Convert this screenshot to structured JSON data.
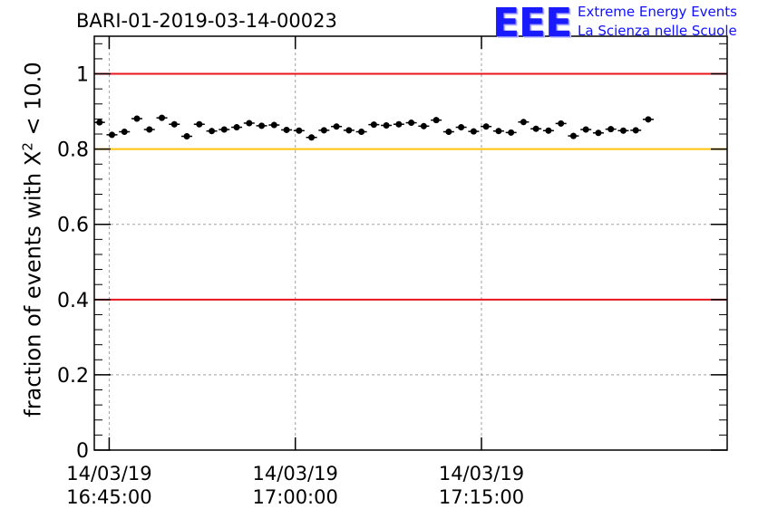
{
  "chart_data": {
    "type": "scatter",
    "title": "BARI-01-2019-03-14-00023",
    "ylabel": "fraction of events with",
    "ylabel_symbol": "X",
    "ylabel_exp": "2",
    "ylabel_suffix": " < 10.0",
    "ylim": [
      0,
      1.1
    ],
    "y_ticks": [
      {
        "value": 0,
        "label": "0"
      },
      {
        "value": 0.2,
        "label": "0.2"
      },
      {
        "value": 0.4,
        "label": "0.4"
      },
      {
        "value": 0.6,
        "label": "0.6"
      },
      {
        "value": 0.8,
        "label": "0.8"
      },
      {
        "value": 1,
        "label": "1"
      }
    ],
    "x_unit": "minutes",
    "xlim": [
      16.73,
      17.58
    ],
    "x_ticks": [
      {
        "value": 16.75,
        "date": "14/03/19",
        "time": "16:45:00"
      },
      {
        "value": 17.0,
        "date": "14/03/19",
        "time": "17:00:00"
      },
      {
        "value": 17.25,
        "date": "14/03/19",
        "time": "17:15:00"
      }
    ],
    "grid": true,
    "reference_lines": [
      {
        "y": 1.0,
        "color": "#e8151b"
      },
      {
        "y": 0.8,
        "color": "#ffc20e"
      },
      {
        "y": 0.4,
        "color": "#e8151b"
      }
    ],
    "marker_color": "#000000",
    "series": [
      {
        "x_start": 16.737,
        "x_step": 0.01675,
        "values": [
          0.871,
          0.838,
          0.846,
          0.881,
          0.852,
          0.883,
          0.866,
          0.834,
          0.866,
          0.848,
          0.852,
          0.858,
          0.869,
          0.862,
          0.864,
          0.851,
          0.849,
          0.831,
          0.85,
          0.86,
          0.85,
          0.846,
          0.865,
          0.863,
          0.866,
          0.87,
          0.861,
          0.877,
          0.846,
          0.858,
          0.847,
          0.86,
          0.848,
          0.844,
          0.872,
          0.854,
          0.849,
          0.868,
          0.835,
          0.852,
          0.843,
          0.853,
          0.849,
          0.85,
          0.879
        ],
        "errors": [
          0.008,
          0.008,
          0.008,
          0.008,
          0.008,
          0.008,
          0.008,
          0.008,
          0.008,
          0.008,
          0.008,
          0.008,
          0.008,
          0.008,
          0.008,
          0.008,
          0.008,
          0.008,
          0.008,
          0.008,
          0.008,
          0.008,
          0.008,
          0.008,
          0.008,
          0.008,
          0.008,
          0.008,
          0.008,
          0.008,
          0.008,
          0.008,
          0.008,
          0.008,
          0.008,
          0.008,
          0.008,
          0.008,
          0.008,
          0.008,
          0.008,
          0.008,
          0.008,
          0.008,
          0.008
        ]
      }
    ]
  },
  "header": {
    "logo": "EEE",
    "brand_line1": "Extreme Energy Events",
    "brand_line2": "La Scienza nelle Scuole"
  }
}
